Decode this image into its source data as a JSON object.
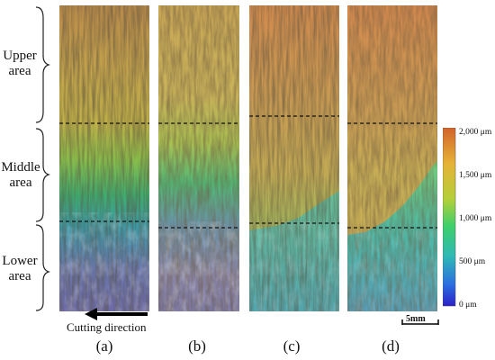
{
  "regions": {
    "upper": [
      "Upper",
      "area"
    ],
    "middle": [
      "Middle",
      "area"
    ],
    "lower": [
      "Lower",
      "area"
    ]
  },
  "panels": [
    {
      "caption": "(a)"
    },
    {
      "caption": "(b)"
    },
    {
      "caption": "(c)"
    },
    {
      "caption": "(d)"
    }
  ],
  "colorbar": {
    "ticks": [
      "2,000 μm",
      "1,500 μm",
      "1,000 μm",
      "500 μm",
      "0 μm"
    ],
    "colors": [
      "#d2642a",
      "#e6b237",
      "#b5cf3a",
      "#3fcf6a",
      "#2fb9b5",
      "#2a6ee0",
      "#2b20c8"
    ]
  },
  "annotations": {
    "cutting_direction": "Cutting direction",
    "scale_bar": "5mm"
  }
}
